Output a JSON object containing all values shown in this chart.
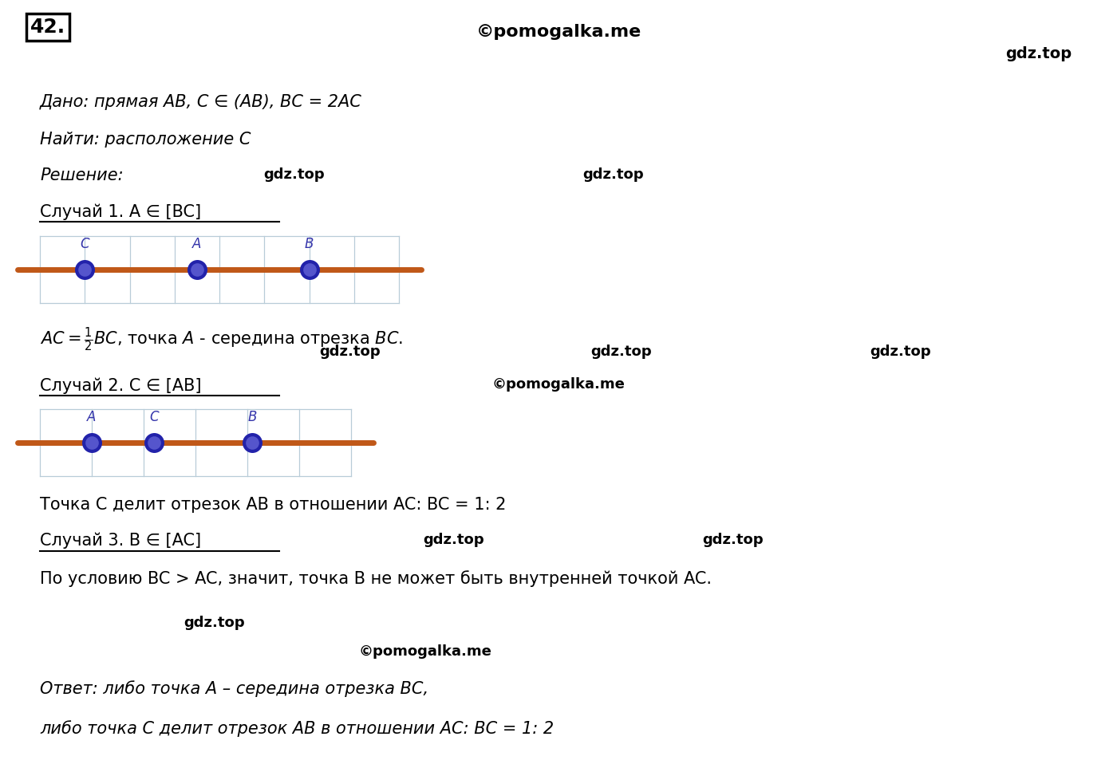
{
  "bg_color": "#ffffff",
  "grid_color": "#b8ccd8",
  "line_color": "#c05818",
  "dot_color_outer": "#2222aa",
  "dot_color_inner": "#5555cc",
  "dot_label_color": "#3333aa",
  "text_color": "#111111",
  "watermark1": "©pomogalka.me",
  "watermark2": "gdz.top",
  "title_number": "42.",
  "dano_line": "Дано: прямая AB, C ∈ (AB), BC = 2AC",
  "najti_line": "Найти: расположение C",
  "reshenie_line": "Решение:",
  "sluchai1_label": "Случай 1. A ∈ [BC]",
  "sluchai2_label": "Случай 2. C ∈ [AB]",
  "sluchai3_label": "Случай 3. B ∈ [AC]",
  "sluchai2_text": "Точка C делит отрезок AB в отношении AC: BC = 1: 2",
  "sluchai3_text": "По условию BC > AC, значит, точка B не может быть внутренней точкой AC.",
  "otvet_line1": "Ответ: либо точка A – середина отрезка BC,",
  "otvet_line2": "либо точка C делит отрезок AB в отношении AC: BC = 1: 2"
}
